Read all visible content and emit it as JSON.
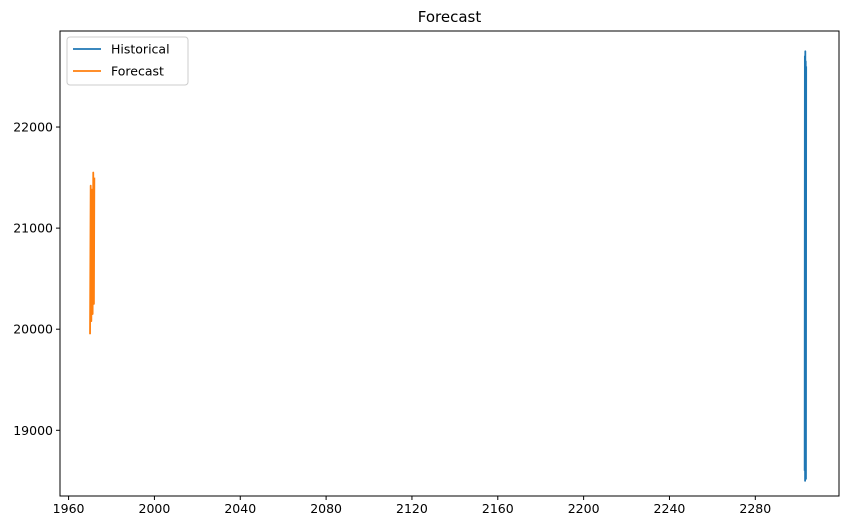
{
  "chart_data": {
    "type": "line",
    "title": "Forecast",
    "xlabel": "",
    "ylabel": "",
    "xlim": [
      1956,
      2319
    ],
    "ylim": [
      18350,
      22950
    ],
    "x_ticks": [
      1960,
      2000,
      2040,
      2080,
      2120,
      2160,
      2200,
      2240,
      2280
    ],
    "y_ticks": [
      19000,
      20000,
      21000,
      22000
    ],
    "legend": {
      "placement": "top-left",
      "entries": [
        "Historical",
        "Forecast"
      ]
    },
    "grid": false,
    "series": [
      {
        "name": "Historical",
        "color": "#1f77b4",
        "points": [
          [
            2303.0,
            18600
          ],
          [
            2303.1,
            22700
          ],
          [
            2303.2,
            18500
          ],
          [
            2303.3,
            22750
          ],
          [
            2303.4,
            18550
          ],
          [
            2303.5,
            22650
          ],
          [
            2303.6,
            18520
          ],
          [
            2303.7,
            22600
          ]
        ]
      },
      {
        "name": "Forecast",
        "color": "#ff7f0e",
        "points": [
          [
            1970.0,
            19950
          ],
          [
            1970.3,
            21420
          ],
          [
            1970.6,
            20080
          ],
          [
            1970.9,
            21380
          ],
          [
            1971.2,
            20150
          ],
          [
            1971.5,
            21550
          ],
          [
            1971.8,
            20250
          ],
          [
            1972.0,
            21500
          ]
        ]
      }
    ]
  }
}
